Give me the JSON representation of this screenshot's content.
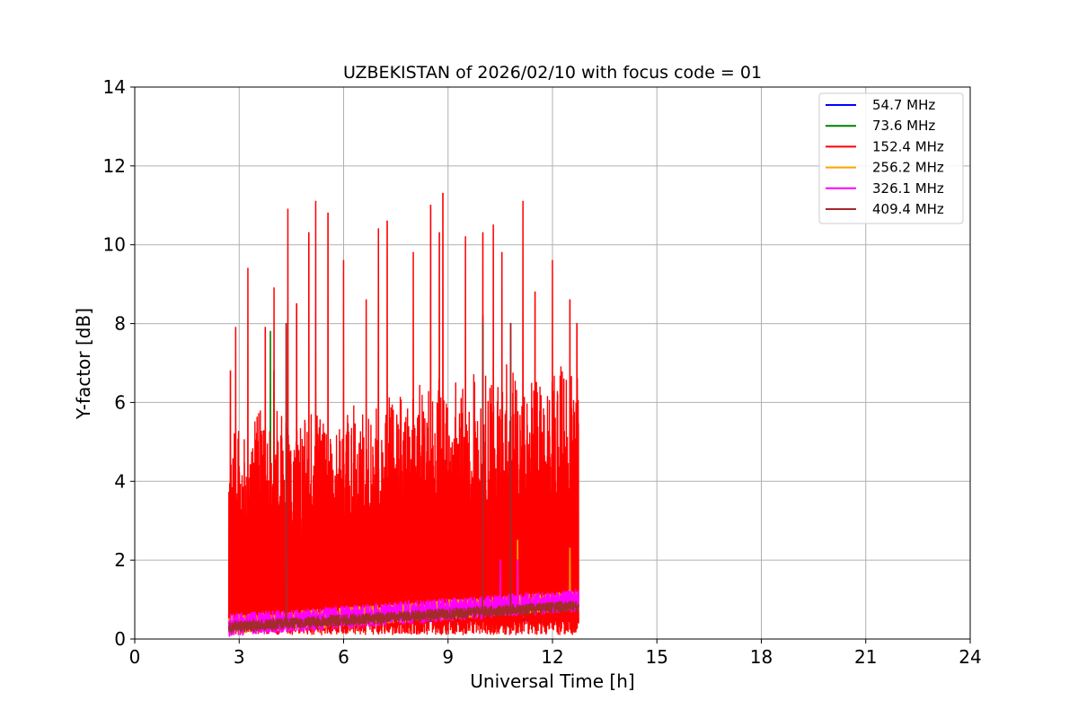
{
  "chart_data": {
    "type": "line",
    "title": "UZBEKISTAN of 2026/02/10 with focus code = 01",
    "xlabel": "Universal Time [h]",
    "ylabel": "Y-factor [dB]",
    "xlim": [
      0,
      24
    ],
    "ylim": [
      0,
      14
    ],
    "xticks": [
      0,
      3,
      6,
      9,
      12,
      15,
      18,
      21,
      24
    ],
    "yticks": [
      0,
      2,
      4,
      6,
      8,
      10,
      12,
      14
    ],
    "grid": true,
    "legend_position": "top-right",
    "data_time_range": [
      2.7,
      12.75
    ],
    "series": [
      {
        "name": " 54.7 MHz",
        "color": "#0000ff",
        "baseline": 0.5,
        "noise": 0.15,
        "peaks": []
      },
      {
        "name": " 73.6 MHz",
        "color": "#008000",
        "baseline": 0.6,
        "noise": 0.3,
        "peaks": [
          [
            3.6,
            1.6
          ],
          [
            3.9,
            7.8
          ],
          [
            4.0,
            6.8
          ],
          [
            5.0,
            1.5
          ],
          [
            5.6,
            1.2
          ],
          [
            10.0,
            8.2
          ]
        ]
      },
      {
        "name": "152.4 MHz",
        "color": "#ff0000",
        "baseline": 1.0,
        "noise": 4.0,
        "peaks": [
          [
            2.75,
            6.8
          ],
          [
            2.9,
            7.9
          ],
          [
            3.25,
            9.4
          ],
          [
            3.75,
            7.9
          ],
          [
            4.0,
            8.9
          ],
          [
            4.4,
            10.9
          ],
          [
            4.65,
            8.5
          ],
          [
            5.0,
            10.3
          ],
          [
            5.2,
            11.1
          ],
          [
            5.55,
            10.8
          ],
          [
            6.0,
            9.6
          ],
          [
            6.65,
            8.6
          ],
          [
            7.0,
            10.4
          ],
          [
            7.25,
            10.6
          ],
          [
            8.0,
            9.8
          ],
          [
            8.5,
            11.0
          ],
          [
            8.75,
            10.3
          ],
          [
            8.85,
            11.3
          ],
          [
            9.5,
            10.2
          ],
          [
            10.0,
            10.3
          ],
          [
            10.3,
            10.5
          ],
          [
            10.55,
            9.8
          ],
          [
            10.8,
            8.0
          ],
          [
            11.15,
            11.1
          ],
          [
            11.5,
            8.8
          ],
          [
            12.0,
            9.6
          ],
          [
            12.5,
            8.6
          ],
          [
            12.7,
            8.0
          ]
        ]
      },
      {
        "name": "256.2 MHz",
        "color": "#ffa500",
        "baseline": 0.7,
        "noise": 0.5,
        "peaks": [
          [
            4.35,
            5.0
          ],
          [
            11.0,
            2.5
          ],
          [
            12.5,
            2.3
          ]
        ]
      },
      {
        "name": "326.1 MHz",
        "color": "#ff00ff",
        "baseline": 0.7,
        "noise": 0.6,
        "peaks": [
          [
            4.35,
            3.4
          ],
          [
            10.5,
            2.0
          ],
          [
            11.0,
            2.0
          ]
        ]
      },
      {
        "name": "409.4 MHz",
        "color": "#a52a2a",
        "baseline": 0.6,
        "noise": 0.3,
        "peaks": [
          [
            4.35,
            8.0
          ],
          [
            10.0,
            8.0
          ],
          [
            10.8,
            8.0
          ]
        ]
      }
    ]
  }
}
